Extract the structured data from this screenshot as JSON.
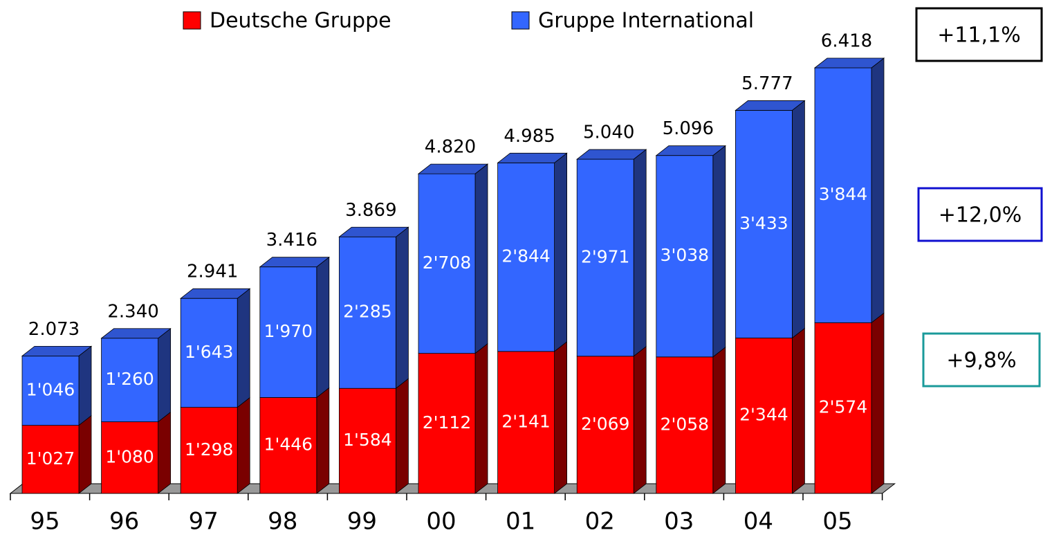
{
  "chart_data": {
    "type": "bar3d_stacked",
    "categories": [
      "95",
      "96",
      "97",
      "98",
      "99",
      "00",
      "01",
      "02",
      "03",
      "04",
      "05"
    ],
    "series": [
      {
        "name": "Deutsche Gruppe",
        "color": "#ff0000",
        "side_color": "#7a0000",
        "top_color": "#c00000",
        "values": [
          1027,
          1080,
          1298,
          1446,
          1584,
          2112,
          2141,
          2069,
          2058,
          2344,
          2574
        ],
        "value_labels": [
          "1'027",
          "1'080",
          "1'298",
          "1'446",
          "1'584",
          "2'112",
          "2'141",
          "2'069",
          "2'058",
          "2'344",
          "2'574"
        ]
      },
      {
        "name": "Gruppe International",
        "color": "#3366ff",
        "side_color": "#1f3580",
        "top_color": "#2f55d0",
        "values": [
          1046,
          1260,
          1643,
          1970,
          2285,
          2708,
          2844,
          2971,
          3038,
          3433,
          3844
        ],
        "value_labels": [
          "1'046",
          "1'260",
          "1'643",
          "1'970",
          "2'285",
          "2'708",
          "2'844",
          "2'971",
          "3'038",
          "3'433",
          "3'844"
        ]
      }
    ],
    "totals": {
      "values": [
        2073,
        2340,
        2941,
        3416,
        3869,
        4820,
        4985,
        5040,
        5096,
        5777,
        6418
      ],
      "value_labels": [
        "2.073",
        "2.340",
        "2.941",
        "3.416",
        "3.869",
        "4.820",
        "4.985",
        "5.040",
        "5.096",
        "5.777",
        "6.418"
      ]
    },
    "annotations": [
      {
        "text": "+11,1%",
        "color": "#000000"
      },
      {
        "text": "+12,0%",
        "color": "#1010d0"
      },
      {
        "text": "+9,8%",
        "color": "#1a9a9a"
      }
    ]
  }
}
